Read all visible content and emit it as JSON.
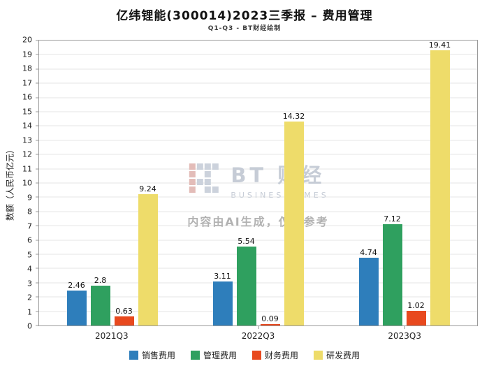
{
  "title": "亿纬锂能(300014)2023三季报 – 费用管理",
  "subtitle": "Q1-Q3 - BT财经绘制",
  "watermark": {
    "brand": "BT 财经",
    "brand_sub": "BUSINESSTIMES",
    "notice": "内容由AI生成，仅供参考"
  },
  "chart_data": {
    "type": "bar",
    "title": "亿纬锂能(300014)2023三季报 – 费用管理",
    "subtitle": "Q1-Q3 - BT财经绘制",
    "categories": [
      "2021Q3",
      "2022Q3",
      "2023Q3"
    ],
    "series": [
      {
        "name": "销售费用",
        "color": "#2e7ebb",
        "values": [
          2.46,
          3.11,
          4.74
        ]
      },
      {
        "name": "管理费用",
        "color": "#2fa05f",
        "values": [
          2.8,
          5.54,
          7.12
        ]
      },
      {
        "name": "财务费用",
        "color": "#e8491e",
        "values": [
          0.63,
          0.09,
          1.02
        ]
      },
      {
        "name": "研发费用",
        "color": "#eedc6a",
        "values": [
          9.24,
          14.32,
          19.41
        ]
      }
    ],
    "xlabel": "",
    "ylabel": "数额（人民币亿元）",
    "ylim": [
      0,
      20
    ],
    "ytick_step": 1,
    "grid": true,
    "legend_position": "bottom",
    "data_labels": true
  }
}
